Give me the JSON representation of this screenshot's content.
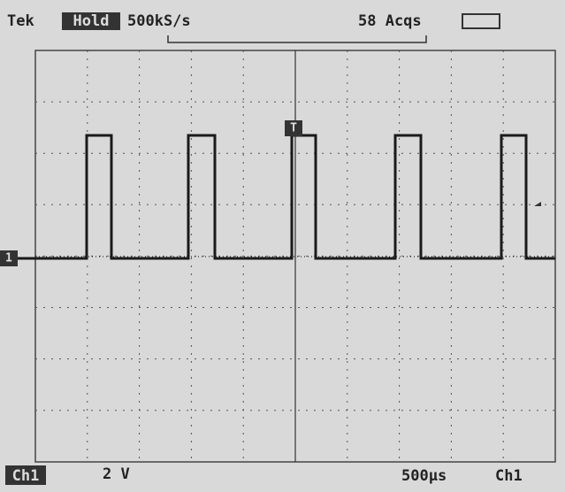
{
  "header": {
    "brand": "Tek",
    "mode": "Hold",
    "sample_rate": "500kS/s",
    "acquisitions": "58 Acqs"
  },
  "markers": {
    "channel": "1",
    "trigger": "T"
  },
  "footer": {
    "channel": "Ch1",
    "volts_per_div": "2 V",
    "time_per_div": "500µs",
    "trigger_source": "Ch1"
  }
}
